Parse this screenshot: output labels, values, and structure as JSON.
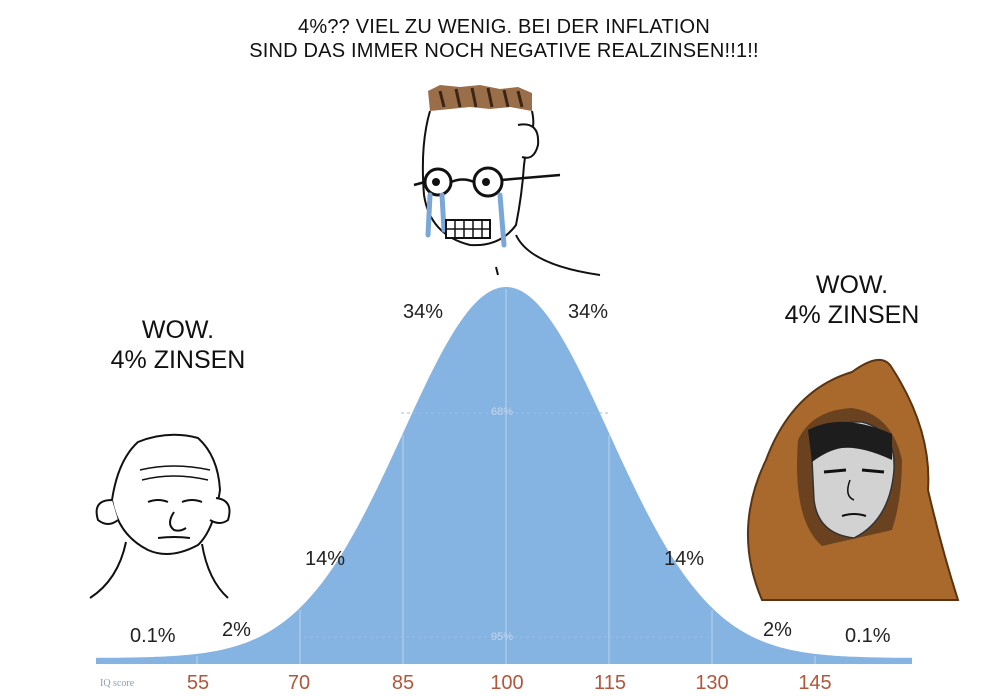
{
  "captions": {
    "top_line1": "4%?? VIEL ZU WENIG. BEI DER INFLATION",
    "top_line2": "SIND DAS IMMER NOCH NEGATIVE REALZINSEN!!1!!",
    "left_line1": "WOW.",
    "left_line2": "4% ZINSEN",
    "right_line1": "WOW.",
    "right_line2": "4% ZINSEN"
  },
  "chart_data": {
    "type": "area",
    "xlabel": "IQ score",
    "x_ticks": [
      "55",
      "70",
      "85",
      "100",
      "115",
      "130",
      "145"
    ],
    "segment_labels": [
      "0.1%",
      "2%",
      "14%",
      "34%",
      "34%",
      "14%",
      "2%",
      "0.1%"
    ],
    "inner_labels": [
      "68%",
      "95%"
    ],
    "color": "#85b3e2"
  },
  "characters": [
    "wojak-left",
    "crying-nerd-center",
    "hooded-figure-right"
  ]
}
